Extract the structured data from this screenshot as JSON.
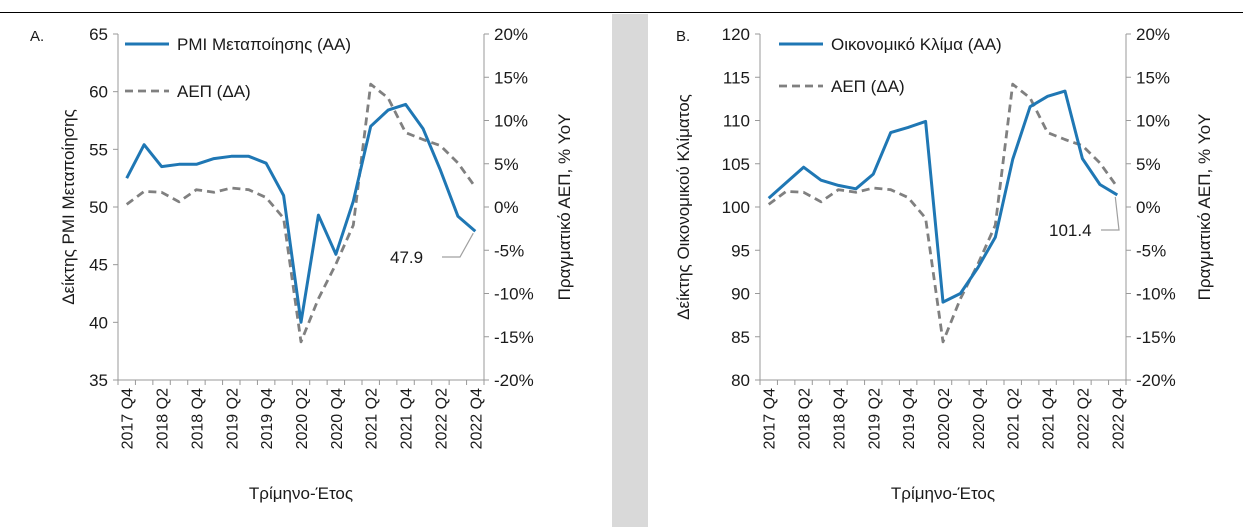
{
  "colors": {
    "primary": "#1f77b4",
    "gdp": "#808080",
    "axis": "#999999",
    "gap": "#d9d9d9"
  },
  "x_axis": {
    "tick_labels": [
      "2017 Q4",
      "2018 Q2",
      "2018 Q4",
      "2019 Q2",
      "2019 Q4",
      "2020 Q2",
      "2020 Q4",
      "2021 Q2",
      "2021 Q4",
      "2022 Q2",
      "2022 Q4"
    ],
    "title": "Τρίμηνο-Έτος"
  },
  "chart_data": [
    {
      "panel_label": "A.",
      "type": "line",
      "x": [
        "2017 Q4",
        "2018 Q1",
        "2018 Q2",
        "2018 Q3",
        "2018 Q4",
        "2019 Q1",
        "2019 Q2",
        "2019 Q3",
        "2019 Q4",
        "2020 Q1",
        "2020 Q2",
        "2020 Q3",
        "2020 Q4",
        "2021 Q1",
        "2021 Q2",
        "2021 Q3",
        "2021 Q4",
        "2022 Q1",
        "2022 Q2",
        "2022 Q3",
        "2022 Q4"
      ],
      "ylabel": "Δείκτης PMI Μεταποίησης",
      "y2label": "Πραγματικό ΑΕΠ, % YoY",
      "ylim": [
        35,
        65
      ],
      "y2lim": [
        -20,
        20
      ],
      "yticks": [
        "35",
        "40",
        "45",
        "50",
        "55",
        "60",
        "65"
      ],
      "y2ticks": [
        "-20%",
        "-15%",
        "-10%",
        "-5%",
        "0%",
        "5%",
        "10%",
        "15%",
        "20%"
      ],
      "series": [
        {
          "name": "PMI Μεταποίησης (ΑΑ)",
          "axis": "left",
          "style": "solid",
          "values": [
            52.5,
            55.4,
            53.5,
            53.7,
            53.7,
            54.2,
            54.4,
            54.4,
            53.8,
            51.0,
            40.0,
            49.3,
            45.9,
            50.5,
            57.0,
            58.4,
            58.9,
            56.8,
            53.2,
            49.2,
            47.9
          ]
        },
        {
          "name": "ΑΕΠ (ΔΑ)",
          "axis": "right",
          "style": "dashed",
          "values": [
            0.3,
            1.8,
            1.7,
            0.6,
            2.0,
            1.7,
            2.2,
            2.0,
            1.1,
            -1.3,
            -15.6,
            -10.6,
            -6.6,
            -2.1,
            14.2,
            12.6,
            8.6,
            7.8,
            7.1,
            5.1,
            2.3
          ]
        }
      ],
      "annotation": "47.9"
    },
    {
      "panel_label": "B.",
      "type": "line",
      "x": [
        "2017 Q4",
        "2018 Q1",
        "2018 Q2",
        "2018 Q3",
        "2018 Q4",
        "2019 Q1",
        "2019 Q2",
        "2019 Q3",
        "2019 Q4",
        "2020 Q1",
        "2020 Q2",
        "2020 Q3",
        "2020 Q4",
        "2021 Q1",
        "2021 Q2",
        "2021 Q3",
        "2021 Q4",
        "2022 Q1",
        "2022 Q2",
        "2022 Q3",
        "2022 Q4"
      ],
      "ylabel": "Δείκτης Οικονομικού Κλίματος",
      "y2label": "Πραγματικό ΑΕΠ, % YoY",
      "ylim": [
        80,
        120
      ],
      "y2lim": [
        -20,
        20
      ],
      "yticks": [
        "80",
        "85",
        "90",
        "95",
        "100",
        "105",
        "110",
        "115",
        "120"
      ],
      "y2ticks": [
        "-20%",
        "-15%",
        "-10%",
        "-5%",
        "0%",
        "5%",
        "10%",
        "15%",
        "20%"
      ],
      "series": [
        {
          "name": "Οικονομικό Κλίμα (ΑΑ)",
          "axis": "left",
          "style": "solid",
          "values": [
            101.0,
            102.8,
            104.6,
            103.1,
            102.5,
            102.1,
            103.8,
            108.6,
            109.2,
            109.9,
            89.0,
            90.0,
            93.0,
            96.5,
            105.5,
            111.6,
            112.8,
            113.4,
            105.6,
            102.6,
            101.4
          ]
        },
        {
          "name": "ΑΕΠ (ΔΑ)",
          "axis": "right",
          "style": "dashed",
          "values": [
            0.3,
            1.8,
            1.7,
            0.6,
            2.0,
            1.7,
            2.2,
            2.0,
            1.1,
            -1.3,
            -15.6,
            -10.6,
            -6.6,
            -2.1,
            14.2,
            12.6,
            8.6,
            7.8,
            7.1,
            5.1,
            2.3
          ]
        }
      ],
      "annotation": "101.4"
    }
  ]
}
